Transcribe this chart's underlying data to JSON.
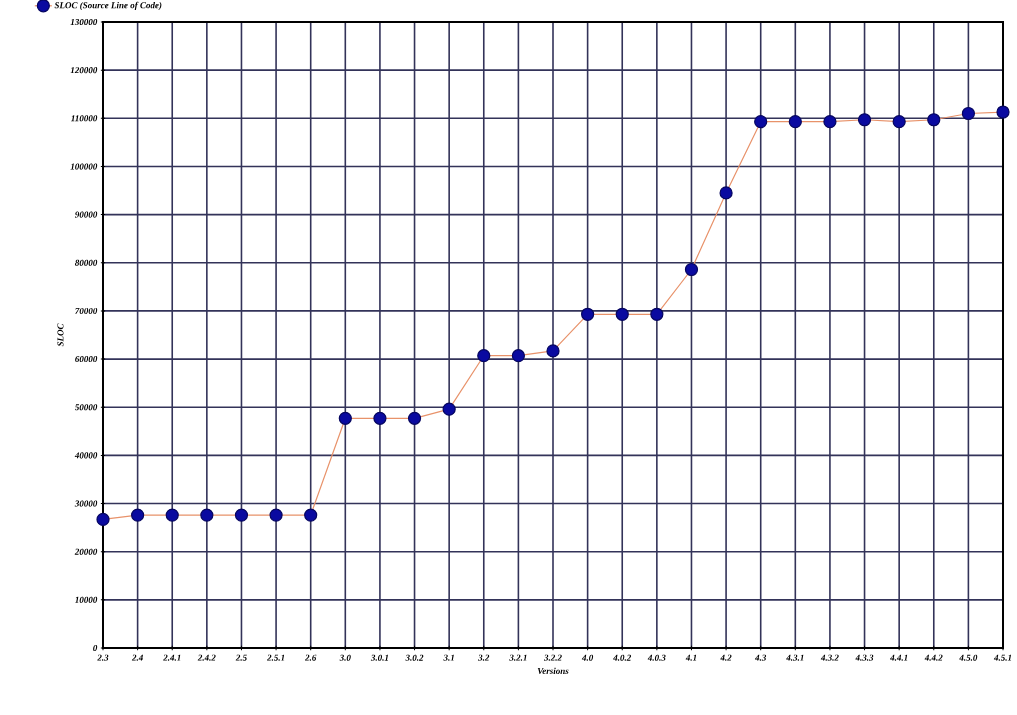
{
  "chart_data": {
    "type": "line",
    "xlabel": "Versions",
    "ylabel": "SLOC",
    "categories": [
      "2.3",
      "2.4",
      "2.4.1",
      "2.4.2",
      "2.5",
      "2.5.1",
      "2.6",
      "3.0",
      "3.0.1",
      "3.0.2",
      "3.1",
      "3.2",
      "3.2.1",
      "3.2.2",
      "4.0",
      "4.0.2",
      "4.0.3",
      "4.1",
      "4.2",
      "4.3",
      "4.3.1",
      "4.3.2",
      "4.3.3",
      "4.4.1",
      "4.4.2",
      "4.5.0",
      "4.5.1"
    ],
    "series": [
      {
        "name": "SLOC (Source Line of Code)",
        "color": "#e8926a",
        "values": [
          26700,
          27600,
          27600,
          27600,
          27600,
          27600,
          27600,
          47700,
          47700,
          47700,
          49600,
          60700,
          60700,
          61700,
          69300,
          69300,
          69300,
          78600,
          94500,
          109300,
          109300,
          109300,
          109700,
          109300,
          109700,
          111000,
          111300
        ]
      }
    ],
    "ylim": [
      0,
      130000
    ],
    "yticks": [
      0,
      10000,
      20000,
      30000,
      40000,
      50000,
      60000,
      70000,
      80000,
      90000,
      100000,
      110000,
      120000,
      130000
    ],
    "grid": true,
    "legend": "top left",
    "marker": "circle",
    "line_style": "solid"
  }
}
